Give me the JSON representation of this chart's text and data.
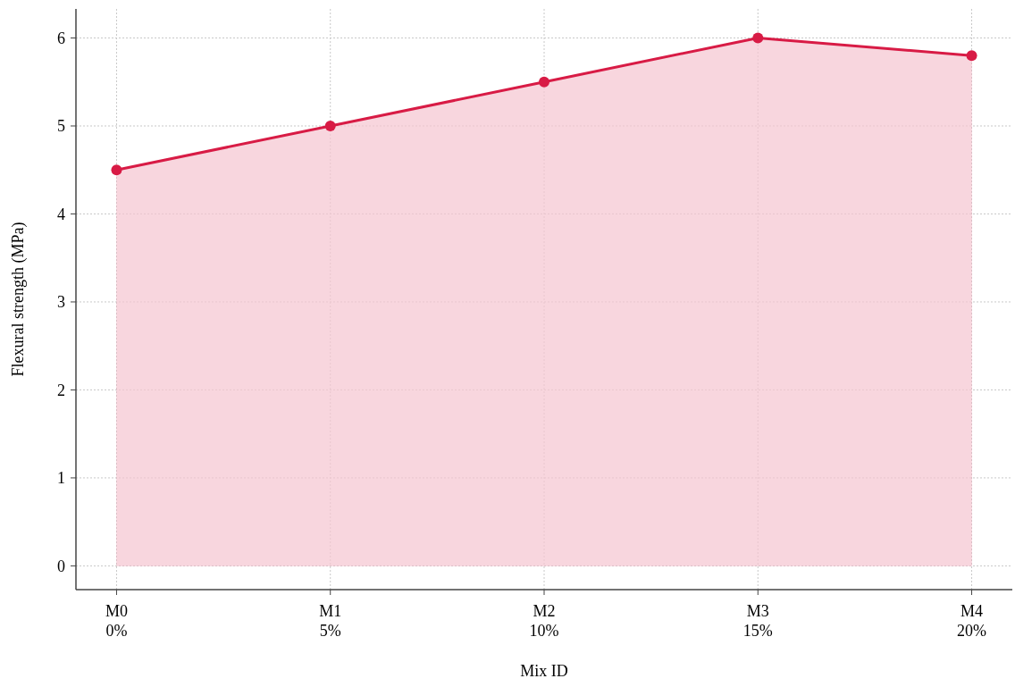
{
  "chart_data": {
    "type": "area",
    "xlabel": "Mix ID",
    "ylabel": "Flexural strength (MPa)",
    "categories": [
      "M0\n0%",
      "M1\n5%",
      "M2\n10%",
      "M3\n15%",
      "M4\n20%"
    ],
    "series": [
      {
        "color": "#d81b45",
        "values": [
          4.5,
          5.0,
          5.5,
          6.0,
          5.8
        ]
      }
    ],
    "ylim": [
      -0.27,
      6.33
    ],
    "yticks": [
      0,
      1,
      2,
      3,
      4,
      5,
      6
    ],
    "grid": true,
    "marker": "circle",
    "line_style": "solid"
  }
}
